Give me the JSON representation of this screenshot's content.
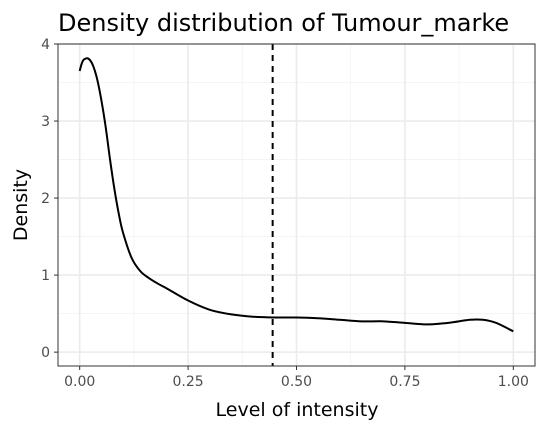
{
  "chart_data": {
    "type": "line",
    "title": "Density distribution of Tumour_marke",
    "xlabel": "Level of intensity",
    "ylabel": "Density",
    "xlim": [
      -0.05,
      1.05
    ],
    "ylim": [
      -0.18,
      4.0
    ],
    "xticks": [
      0.0,
      0.25,
      0.5,
      0.75,
      1.0
    ],
    "xtick_labels": [
      "0.00",
      "0.25",
      "0.50",
      "0.75",
      "1.00"
    ],
    "yticks": [
      0,
      1,
      2,
      3,
      4
    ],
    "ytick_labels": [
      "0",
      "1",
      "2",
      "3",
      "4"
    ],
    "grid": true,
    "series": [
      {
        "x": [
          0.0,
          0.005,
          0.01,
          0.02,
          0.03,
          0.04,
          0.05,
          0.06,
          0.07,
          0.08,
          0.09,
          0.1,
          0.12,
          0.14,
          0.16,
          0.18,
          0.2,
          0.25,
          0.3,
          0.35,
          0.4,
          0.45,
          0.5,
          0.55,
          0.6,
          0.65,
          0.7,
          0.75,
          0.8,
          0.85,
          0.9,
          0.93,
          0.96,
          1.0
        ],
        "y": [
          3.65,
          3.75,
          3.8,
          3.81,
          3.73,
          3.55,
          3.27,
          2.92,
          2.5,
          2.12,
          1.8,
          1.55,
          1.22,
          1.05,
          0.96,
          0.89,
          0.83,
          0.67,
          0.55,
          0.49,
          0.46,
          0.45,
          0.45,
          0.44,
          0.42,
          0.4,
          0.4,
          0.38,
          0.36,
          0.38,
          0.42,
          0.42,
          0.38,
          0.27
        ],
        "color": "#000000"
      }
    ],
    "reference_line": {
      "x": 0.445,
      "style": "dashed",
      "color": "#000000"
    }
  }
}
